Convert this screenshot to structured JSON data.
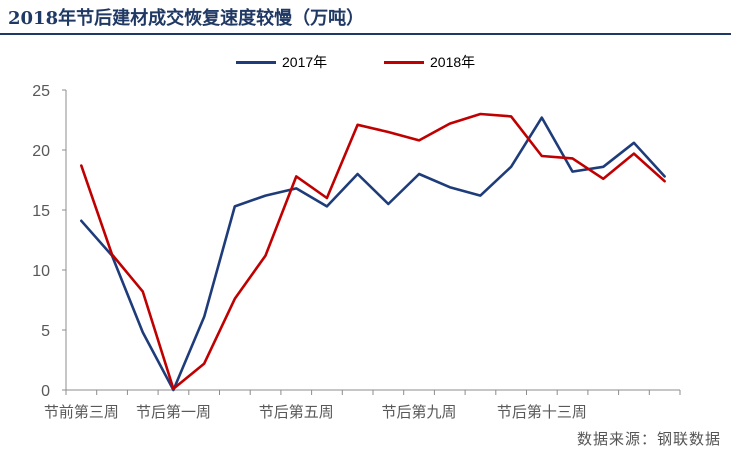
{
  "title": "2018年节后建材成交恢复速度较慢（万吨）",
  "source": "数据来源：钢联数据",
  "chart_data": {
    "type": "line",
    "title": "2018年节后建材成交恢复速度较慢（万吨）",
    "xlabel": "",
    "ylabel": "",
    "ylim": [
      0,
      25
    ],
    "yticks": [
      0,
      5,
      10,
      15,
      20,
      25
    ],
    "grid": false,
    "legend_position": "top",
    "tick_labels": [
      "节前第三周",
      "节后第一周",
      "节后第五周",
      "节后第九周",
      "节后第十三周"
    ],
    "tick_label_positions": [
      0,
      3,
      7,
      11,
      15
    ],
    "series": [
      {
        "name": "2017年",
        "color": "#1f3c7a",
        "values": [
          14.1,
          11.2,
          4.8,
          0.0,
          6.1,
          15.3,
          16.2,
          16.8,
          15.3,
          18.0,
          15.5,
          18.0,
          16.9,
          16.2,
          18.6,
          22.7,
          18.2,
          18.6,
          20.6,
          17.8
        ]
      },
      {
        "name": "2018年",
        "color": "#c00000",
        "values": [
          18.7,
          11.3,
          8.2,
          0.1,
          2.2,
          7.6,
          11.2,
          17.8,
          16.0,
          22.1,
          21.5,
          20.8,
          22.2,
          23.0,
          22.8,
          19.5,
          19.3,
          17.6,
          19.7,
          17.4
        ]
      }
    ]
  }
}
